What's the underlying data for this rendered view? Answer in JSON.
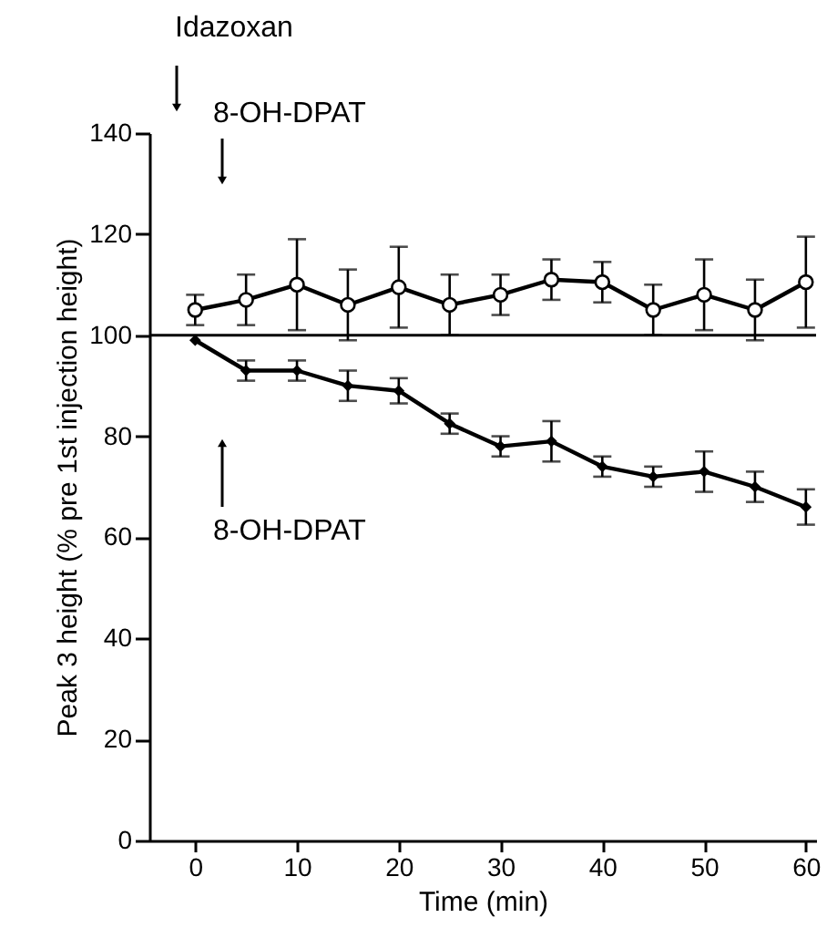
{
  "chart_data": {
    "type": "line",
    "xlabel": "Time (min)",
    "ylabel": "Peak 3 height (% pre 1st injection height)",
    "x": [
      0,
      5,
      10,
      15,
      20,
      25,
      30,
      35,
      40,
      45,
      50,
      55,
      60
    ],
    "series": [
      {
        "color": "#000000",
        "marker": "circle",
        "values": [
          105,
          107,
          110,
          106,
          109.5,
          106,
          108,
          111,
          110.5,
          105,
          108,
          105,
          110.5
        ],
        "errors": [
          3,
          5,
          9,
          7,
          8,
          6,
          4,
          4,
          4,
          5,
          7,
          6,
          9
        ]
      },
      {
        "color": "#000000",
        "marker": "diamond",
        "values": [
          99,
          93,
          93,
          90,
          89,
          82.5,
          78,
          79,
          74,
          72,
          73,
          70,
          66
        ],
        "errors": [
          null,
          2,
          2,
          3,
          2.5,
          2,
          2,
          4,
          2,
          2,
          4,
          3,
          3.5
        ]
      }
    ],
    "xlim": [
      -4.5,
      61
    ],
    "xticks": [
      0,
      10,
      20,
      30,
      40,
      50,
      60
    ],
    "ylim": [
      0,
      140
    ],
    "yticks": [
      0,
      20,
      40,
      60,
      80,
      100,
      120,
      140
    ],
    "ref_lines": [
      {
        "axis": "y",
        "value": 100,
        "color": "#000000"
      }
    ],
    "annotations": [
      "Idazoxan",
      "8-OH-DPAT",
      "8-OH-DPAT"
    ],
    "grid": false,
    "line_style": "solid"
  }
}
